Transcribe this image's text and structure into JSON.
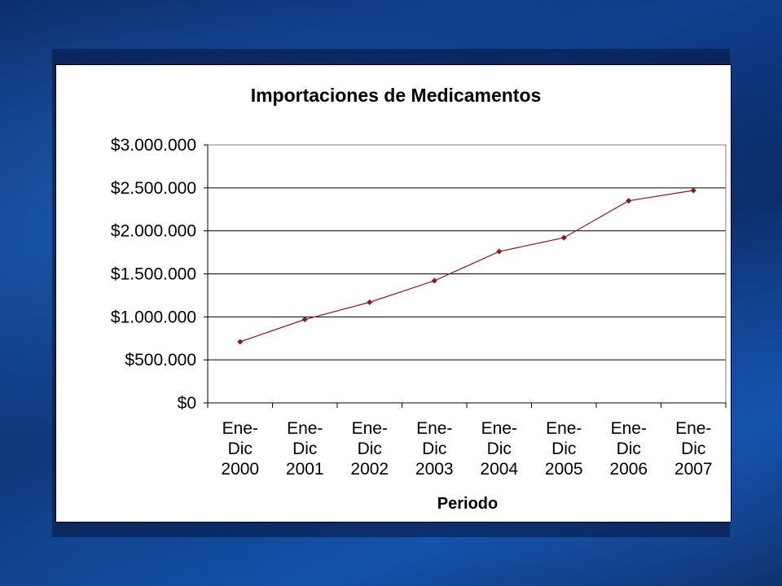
{
  "chart_data": {
    "type": "line",
    "title": "Importaciones de Medicamentos",
    "xlabel": "Periodo",
    "ylabel": "",
    "categories": [
      [
        "Ene-",
        "Dic",
        "2000"
      ],
      [
        "Ene-",
        "Dic",
        "2001"
      ],
      [
        "Ene-",
        "Dic",
        "2002"
      ],
      [
        "Ene-",
        "Dic",
        "2003"
      ],
      [
        "Ene-",
        "Dic",
        "2004"
      ],
      [
        "Ene-",
        "Dic",
        "2005"
      ],
      [
        "Ene-",
        "Dic",
        "2006"
      ],
      [
        "Ene-",
        "Dic",
        "2007"
      ]
    ],
    "series": [
      {
        "values": [
          710000,
          970000,
          1170000,
          1420000,
          1760000,
          1920000,
          2350000,
          2470000
        ]
      }
    ],
    "ylim": [
      0,
      3000000
    ],
    "yticks": [
      0,
      500000,
      1000000,
      1500000,
      2000000,
      2500000,
      3000000
    ],
    "ytick_labels": [
      "$0",
      "$500.000",
      "$1.000.000",
      "$1.500.000",
      "$2.000.000",
      "$2.500.000",
      "$3.000.000"
    ],
    "grid": true,
    "legend": "none",
    "colors": {
      "line": "#8b1a1a",
      "marker": "#8b1a1a",
      "grid": "#000000",
      "background": "#ffffff"
    }
  }
}
